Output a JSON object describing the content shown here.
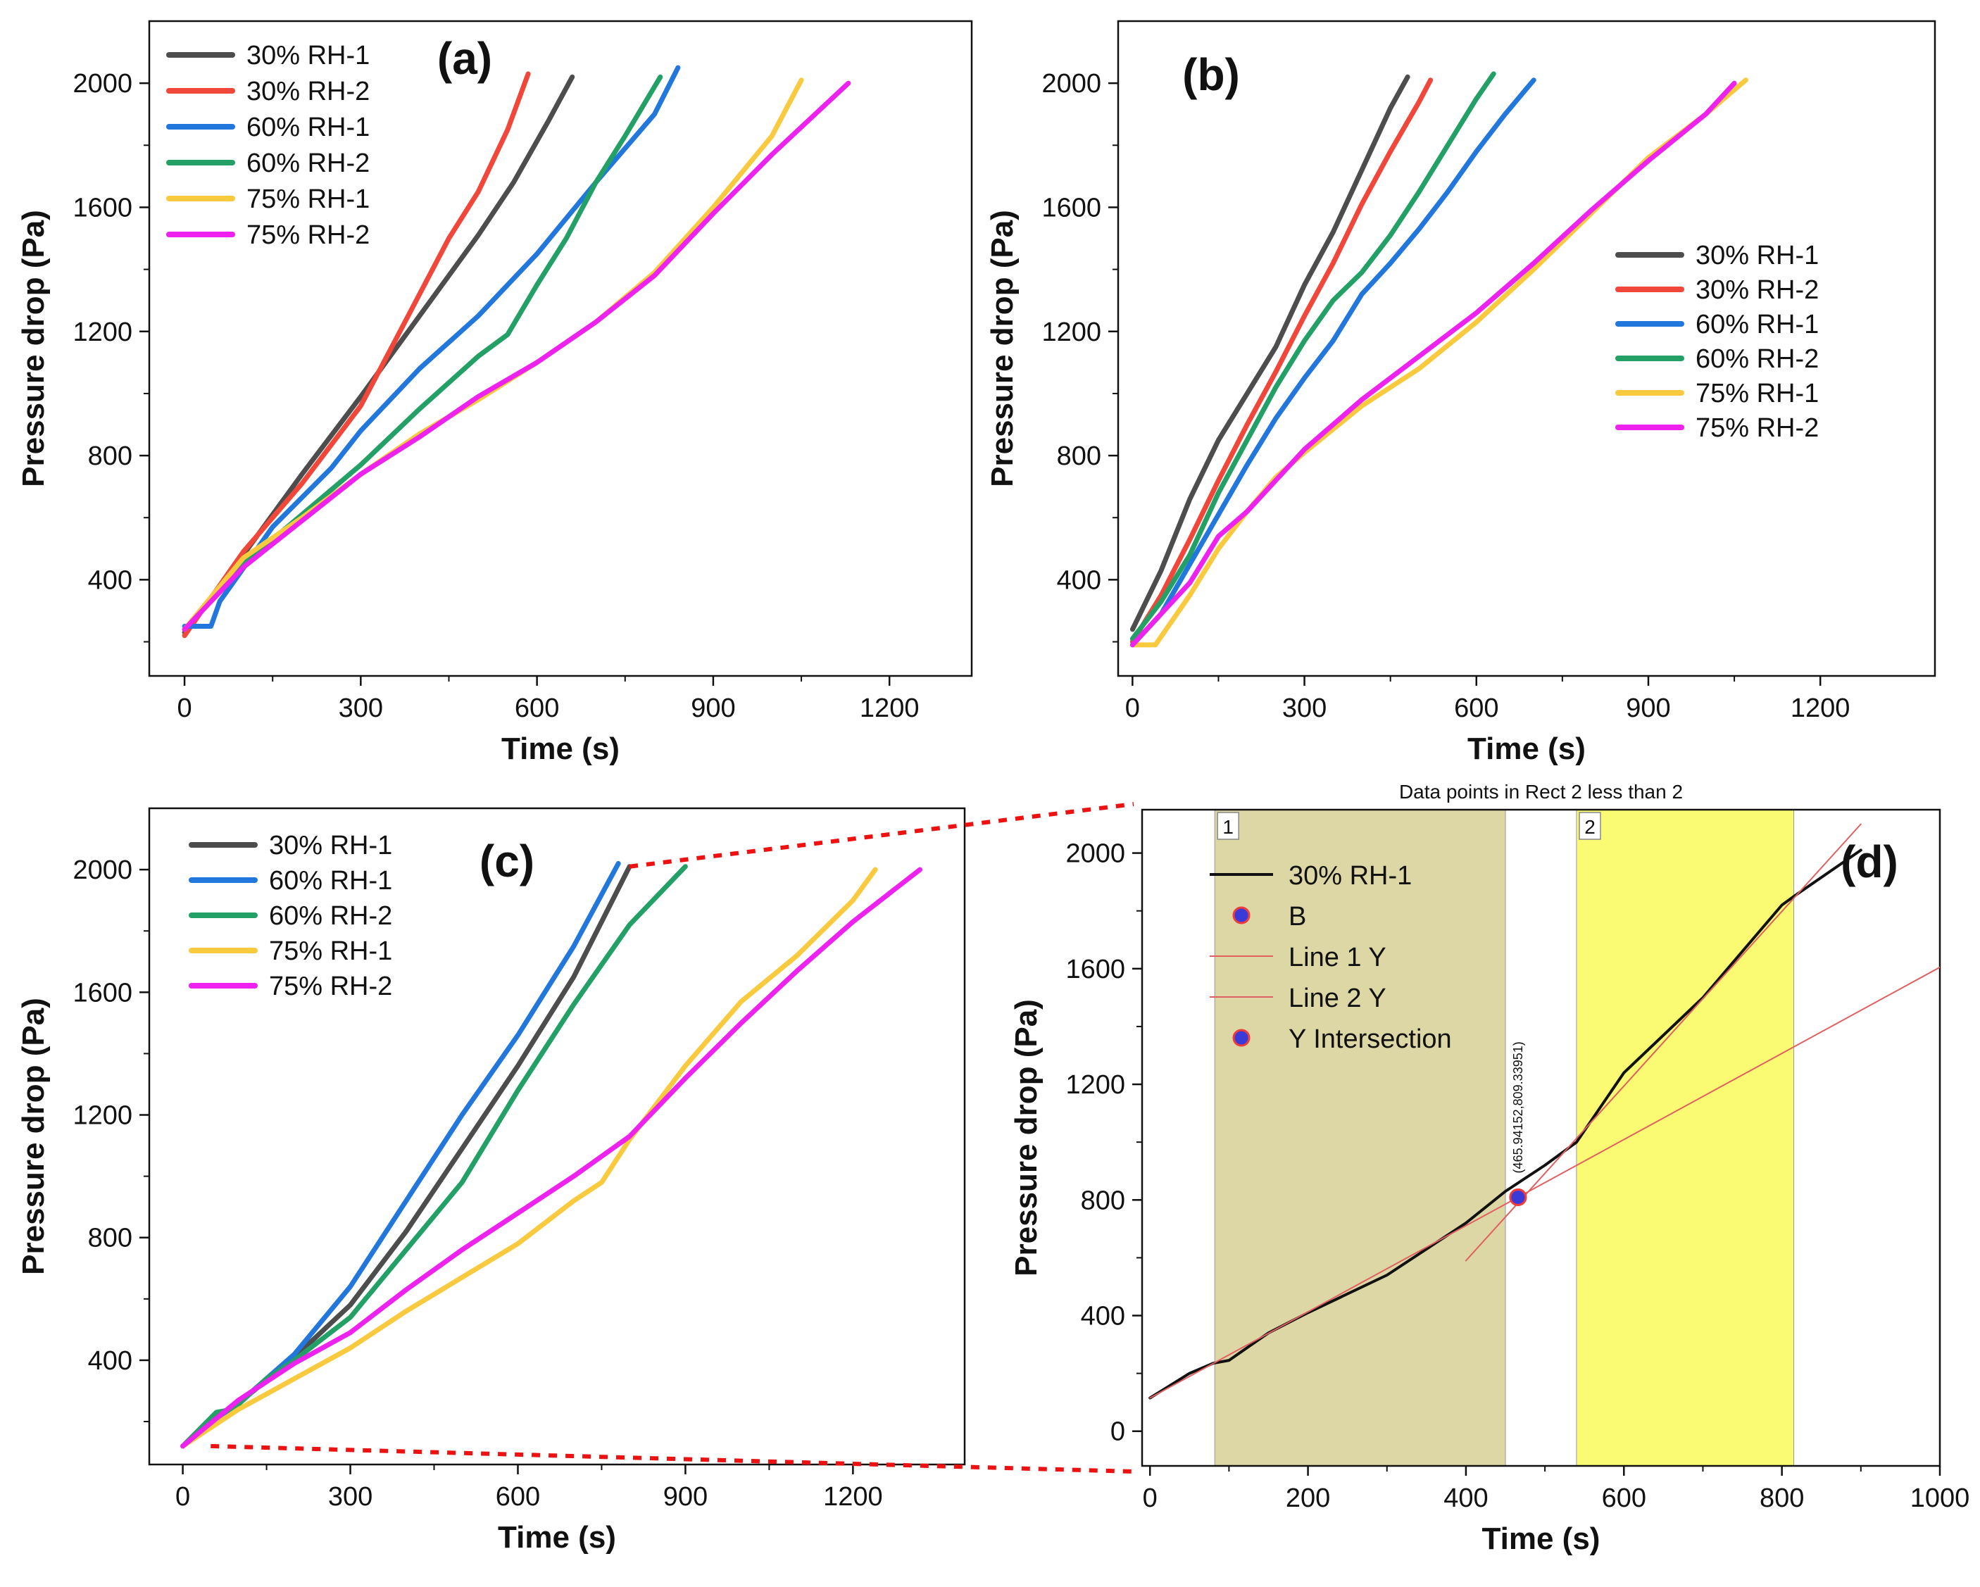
{
  "colors": {
    "RH30_1": "#4d4d4d",
    "RH30_2": "#f0473a",
    "RH60_1": "#2277dd",
    "RH60_2": "#22a066",
    "RH75_1": "#f9c93e",
    "RH75_2": "#ee22ee",
    "fit_line": "#e06060",
    "marker_fill": "#3a3ad8",
    "marker_edge": "#ee3b3b",
    "rect1": "#ddd7a6",
    "rect2": "#fbfb73",
    "zoom_link": "#ee1111"
  },
  "chart_data": [
    {
      "id": "a",
      "type": "line",
      "panel_label": "(a)",
      "xlabel": "Time (s)",
      "ylabel": "Pressure drop (Pa)",
      "xlim": [
        -60,
        1340
      ],
      "ylim": [
        90,
        2200
      ],
      "xticks": [
        0,
        300,
        600,
        900,
        1200
      ],
      "yticks": [
        400,
        800,
        1200,
        1600,
        2000
      ],
      "xtick_labels": [
        "0",
        "300",
        "600",
        "900",
        "1200"
      ],
      "ytick_labels": [
        "400",
        "800",
        "1200",
        "1600",
        "2000"
      ],
      "legend_position": "top-left",
      "series": [
        {
          "name": "30% RH-1",
          "color_key": "RH30_1",
          "x": [
            0,
            100,
            200,
            300,
            400,
            500,
            560,
            620,
            660
          ],
          "y": [
            230,
            480,
            740,
            990,
            1250,
            1510,
            1680,
            1880,
            2020
          ]
        },
        {
          "name": "30% RH-2",
          "color_key": "RH30_2",
          "x": [
            0,
            100,
            200,
            300,
            350,
            400,
            450,
            500,
            550,
            585
          ],
          "y": [
            220,
            490,
            710,
            960,
            1140,
            1320,
            1500,
            1650,
            1850,
            2030
          ]
        },
        {
          "name": "60% RH-1",
          "color_key": "RH60_1",
          "x": [
            0,
            45,
            60,
            150,
            250,
            300,
            400,
            500,
            600,
            700,
            800,
            840
          ],
          "y": [
            250,
            250,
            330,
            570,
            760,
            880,
            1080,
            1250,
            1450,
            1680,
            1900,
            2050
          ]
        },
        {
          "name": "60% RH-2",
          "color_key": "RH60_2",
          "x": [
            0,
            100,
            200,
            300,
            400,
            500,
            550,
            600,
            650,
            700,
            750,
            810
          ],
          "y": [
            240,
            450,
            610,
            770,
            950,
            1120,
            1190,
            1350,
            1500,
            1680,
            1830,
            2020
          ]
        },
        {
          "name": "75% RH-1",
          "color_key": "RH75_1",
          "x": [
            0,
            100,
            200,
            300,
            400,
            500,
            600,
            700,
            800,
            900,
            1000,
            1050
          ],
          "y": [
            240,
            470,
            600,
            740,
            870,
            980,
            1100,
            1230,
            1390,
            1600,
            1830,
            2010
          ]
        },
        {
          "name": "75% RH-2",
          "color_key": "RH75_2",
          "x": [
            0,
            100,
            200,
            300,
            400,
            500,
            600,
            700,
            800,
            900,
            1000,
            1130
          ],
          "y": [
            240,
            440,
            590,
            740,
            860,
            990,
            1100,
            1230,
            1380,
            1580,
            1770,
            2000
          ]
        }
      ]
    },
    {
      "id": "b",
      "type": "line",
      "panel_label": "(b)",
      "xlabel": "Time (s)",
      "ylabel": "Pressure drop (Pa)",
      "xlim": [
        -25,
        1400
      ],
      "ylim": [
        90,
        2200
      ],
      "xticks": [
        0,
        300,
        600,
        900,
        1200
      ],
      "yticks": [
        400,
        800,
        1200,
        1600,
        2000
      ],
      "xtick_labels": [
        "0",
        "300",
        "600",
        "900",
        "1200"
      ],
      "ytick_labels": [
        "400",
        "800",
        "1200",
        "1600",
        "2000"
      ],
      "legend_position": "right",
      "series": [
        {
          "name": "30% RH-1",
          "color_key": "RH30_1",
          "x": [
            0,
            50,
            100,
            150,
            200,
            250,
            300,
            350,
            400,
            450,
            480
          ],
          "y": [
            240,
            430,
            660,
            850,
            1000,
            1150,
            1350,
            1520,
            1720,
            1920,
            2020
          ]
        },
        {
          "name": "30% RH-2",
          "color_key": "RH30_2",
          "x": [
            0,
            50,
            100,
            150,
            200,
            250,
            300,
            350,
            400,
            450,
            500,
            520
          ],
          "y": [
            200,
            350,
            530,
            720,
            900,
            1070,
            1250,
            1420,
            1610,
            1780,
            1940,
            2010
          ]
        },
        {
          "name": "60% RH-1",
          "color_key": "RH60_1",
          "x": [
            0,
            50,
            100,
            150,
            200,
            250,
            300,
            350,
            400,
            450,
            500,
            550,
            600,
            650,
            700
          ],
          "y": [
            190,
            290,
            450,
            610,
            770,
            920,
            1050,
            1170,
            1320,
            1420,
            1530,
            1650,
            1780,
            1900,
            2010
          ]
        },
        {
          "name": "60% RH-2",
          "color_key": "RH60_2",
          "x": [
            0,
            50,
            100,
            150,
            200,
            250,
            300,
            350,
            400,
            450,
            500,
            550,
            600,
            630
          ],
          "y": [
            210,
            330,
            480,
            680,
            850,
            1020,
            1170,
            1300,
            1390,
            1510,
            1650,
            1800,
            1950,
            2030
          ]
        },
        {
          "name": "75% RH-1",
          "color_key": "RH75_1",
          "x": [
            0,
            40,
            100,
            150,
            200,
            250,
            300,
            400,
            500,
            600,
            700,
            800,
            900,
            1000,
            1070
          ],
          "y": [
            190,
            190,
            350,
            500,
            620,
            730,
            810,
            960,
            1080,
            1230,
            1400,
            1580,
            1760,
            1900,
            2010
          ]
        },
        {
          "name": "75% RH-2",
          "color_key": "RH75_2",
          "x": [
            0,
            50,
            100,
            150,
            200,
            250,
            300,
            400,
            500,
            600,
            700,
            800,
            900,
            1000,
            1050
          ],
          "y": [
            190,
            290,
            390,
            540,
            620,
            720,
            820,
            980,
            1120,
            1260,
            1420,
            1590,
            1750,
            1900,
            2000
          ]
        }
      ]
    },
    {
      "id": "c",
      "type": "line",
      "panel_label": "(c)",
      "xlabel": "Time (s)",
      "ylabel": "Pressure drop (Pa)",
      "xlim": [
        -60,
        1400
      ],
      "ylim": [
        60,
        2200
      ],
      "xticks": [
        0,
        300,
        600,
        900,
        1200
      ],
      "yticks": [
        400,
        800,
        1200,
        1600,
        2000
      ],
      "xtick_labels": [
        "0",
        "300",
        "600",
        "900",
        "1200"
      ],
      "ytick_labels": [
        "400",
        "800",
        "1200",
        "1600",
        "2000"
      ],
      "legend_position": "top-left",
      "series": [
        {
          "name": "30% RH-1",
          "color_key": "RH30_1",
          "x": [
            0,
            100,
            200,
            300,
            400,
            500,
            600,
            700,
            800
          ],
          "y": [
            120,
            260,
            410,
            580,
            820,
            1090,
            1360,
            1650,
            2010
          ]
        },
        {
          "name": "60% RH-1",
          "color_key": "RH60_1",
          "x": [
            0,
            100,
            200,
            300,
            400,
            500,
            600,
            700,
            780
          ],
          "y": [
            120,
            260,
            420,
            640,
            920,
            1200,
            1460,
            1750,
            2020
          ]
        },
        {
          "name": "60% RH-2",
          "color_key": "RH60_2",
          "x": [
            0,
            60,
            90,
            150,
            200,
            300,
            400,
            500,
            600,
            700,
            800,
            900
          ],
          "y": [
            120,
            230,
            240,
            340,
            400,
            540,
            760,
            980,
            1280,
            1560,
            1820,
            2010
          ]
        },
        {
          "name": "75% RH-1",
          "color_key": "RH75_1",
          "x": [
            0,
            100,
            200,
            300,
            400,
            500,
            600,
            700,
            750,
            800,
            900,
            1000,
            1100,
            1200,
            1240
          ],
          "y": [
            120,
            240,
            340,
            440,
            560,
            670,
            780,
            920,
            980,
            1120,
            1360,
            1570,
            1720,
            1900,
            2000
          ]
        },
        {
          "name": "75% RH-2",
          "color_key": "RH75_2",
          "x": [
            0,
            100,
            200,
            300,
            400,
            500,
            600,
            700,
            800,
            900,
            1000,
            1100,
            1200,
            1320
          ],
          "y": [
            120,
            270,
            390,
            490,
            630,
            760,
            880,
            1000,
            1130,
            1320,
            1500,
            1670,
            1830,
            2000
          ]
        }
      ]
    },
    {
      "id": "d",
      "type": "line",
      "panel_label": "(d)",
      "title": "Data points in Rect 2 less than 2",
      "xlabel": "Time (s)",
      "ylabel": "Pressure drop (Pa)",
      "xlim": [
        -10,
        1000
      ],
      "ylim": [
        -120,
        2150
      ],
      "xticks": [
        0,
        200,
        400,
        600,
        800,
        1000
      ],
      "yticks": [
        0,
        400,
        800,
        1200,
        1600,
        2000
      ],
      "xtick_labels": [
        "0",
        "200",
        "400",
        "600",
        "800",
        "1000"
      ],
      "ytick_labels": [
        "0",
        "400",
        "800",
        "1200",
        "1600",
        "2000"
      ],
      "legend_position": "top-left",
      "rects": [
        {
          "label": "1",
          "x0": 82,
          "x1": 450,
          "color_key": "rect1"
        },
        {
          "label": "2",
          "x0": 540,
          "x1": 815,
          "color_key": "rect2"
        }
      ],
      "series": [
        {
          "name": "30% RH-1",
          "color_key": "black",
          "x": [
            0,
            50,
            80,
            100,
            150,
            200,
            300,
            400,
            450,
            500,
            540,
            600,
            700,
            800,
            815,
            900
          ],
          "y": [
            115,
            200,
            235,
            245,
            340,
            410,
            540,
            720,
            830,
            920,
            1000,
            1240,
            1500,
            1820,
            1850,
            2010
          ]
        },
        {
          "name": "Line 1 Y",
          "color_key": "fit_line",
          "x": [
            0,
            1000
          ],
          "y": [
            115,
            1605
          ]
        },
        {
          "name": "Line 2 Y",
          "color_key": "fit_line",
          "x": [
            400,
            900
          ],
          "y": [
            590,
            2100
          ]
        }
      ],
      "points": [
        {
          "name": "B",
          "x": 465.94,
          "y": 809.34
        },
        {
          "name": "Y Intersection",
          "x": 465.94,
          "y": 809.34
        }
      ],
      "annotation": "(465.94152,809.33951)",
      "legend_labels": [
        "30% RH-1",
        "B",
        "Line 1 Y",
        "Line 2 Y",
        "Y Intersection"
      ]
    }
  ]
}
